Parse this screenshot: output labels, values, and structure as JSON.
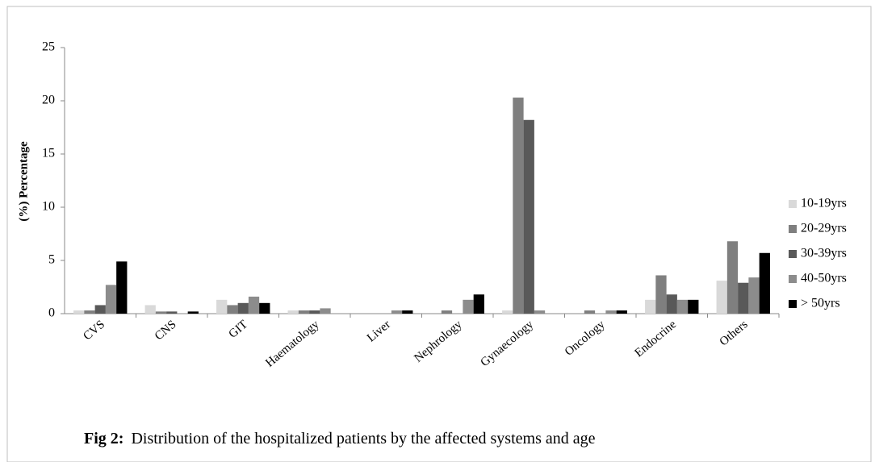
{
  "chart_data": {
    "type": "bar",
    "y_label": "(%) Percentage",
    "caption_label": "Fig 2:",
    "caption": "Distribution of the hospitalized patients by the affected systems and age",
    "categories": [
      "CVS",
      "CNS",
      "GIT",
      "Haematology",
      "Liver",
      "Nephrology",
      "Gynaecology",
      "Oncology",
      "Endocrine",
      "Others"
    ],
    "series": [
      {
        "name": "10-19yrs",
        "color": "#d9d9d9",
        "values": [
          0.3,
          0.8,
          1.3,
          0.3,
          0,
          0,
          0.3,
          0,
          1.3,
          3.1
        ]
      },
      {
        "name": "20-29yrs",
        "color": "#7f7f7f",
        "values": [
          0.3,
          0.2,
          0.8,
          0.3,
          0,
          0.3,
          20.3,
          0.3,
          3.6,
          6.8
        ]
      },
      {
        "name": "30-39yrs",
        "color": "#595959",
        "values": [
          0.8,
          0.2,
          1.0,
          0.3,
          0,
          0,
          18.2,
          0,
          1.8,
          2.9
        ]
      },
      {
        "name": "40-50yrs",
        "color": "#8c8c8c",
        "values": [
          2.7,
          0,
          1.6,
          0.5,
          0.3,
          1.3,
          0.3,
          0.3,
          1.3,
          3.4
        ]
      },
      {
        "name": "> 50yrs",
        "color": "#000000",
        "values": [
          4.9,
          0.2,
          1.0,
          0,
          0.3,
          1.8,
          0,
          0.3,
          1.3,
          5.7
        ]
      }
    ],
    "ylim": [
      0,
      25
    ],
    "yticks": [
      0,
      5,
      10,
      15,
      20,
      25
    ],
    "legend": "right"
  }
}
